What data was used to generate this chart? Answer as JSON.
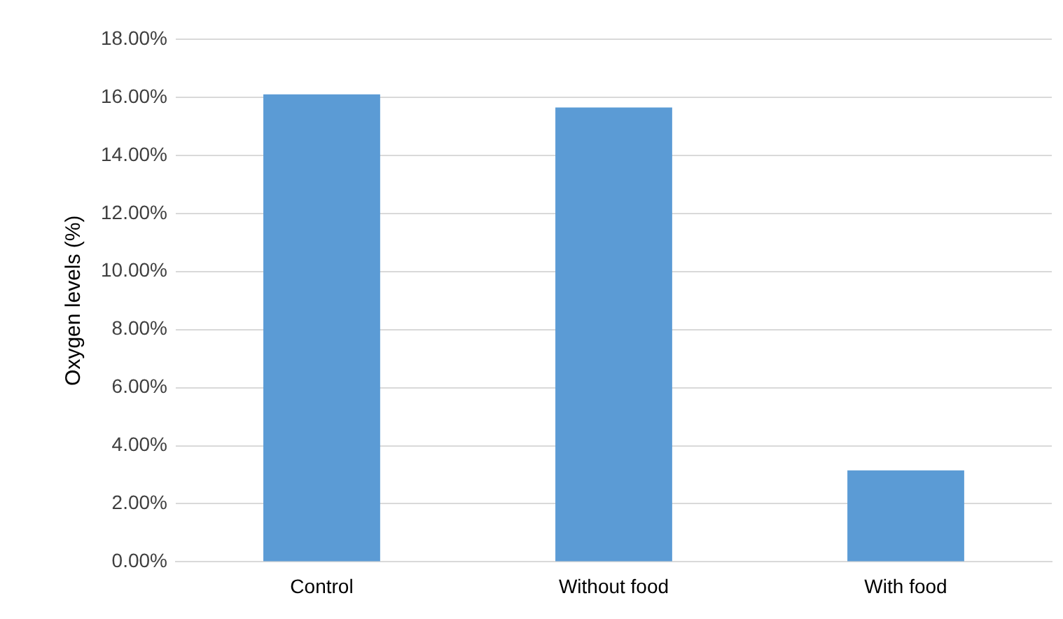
{
  "chart_data": {
    "type": "bar",
    "ylabel": "Oxygen levels (%)",
    "categories": [
      "Control",
      "Without food",
      "With food"
    ],
    "values": [
      16.1,
      15.65,
      3.15
    ],
    "color": "#5b9bd5",
    "ylim": [
      0,
      18
    ],
    "yticks": [
      {
        "value": 0,
        "label": "0.00%"
      },
      {
        "value": 2,
        "label": "2.00%"
      },
      {
        "value": 4,
        "label": "4.00%"
      },
      {
        "value": 6,
        "label": "6.00%"
      },
      {
        "value": 8,
        "label": "8.00%"
      },
      {
        "value": 10,
        "label": "10.00%"
      },
      {
        "value": 12,
        "label": "12.00%"
      },
      {
        "value": 14,
        "label": "14.00%"
      },
      {
        "value": 16,
        "label": "16.00%"
      },
      {
        "value": 18,
        "label": "18.00%"
      }
    ],
    "grid": "y"
  }
}
